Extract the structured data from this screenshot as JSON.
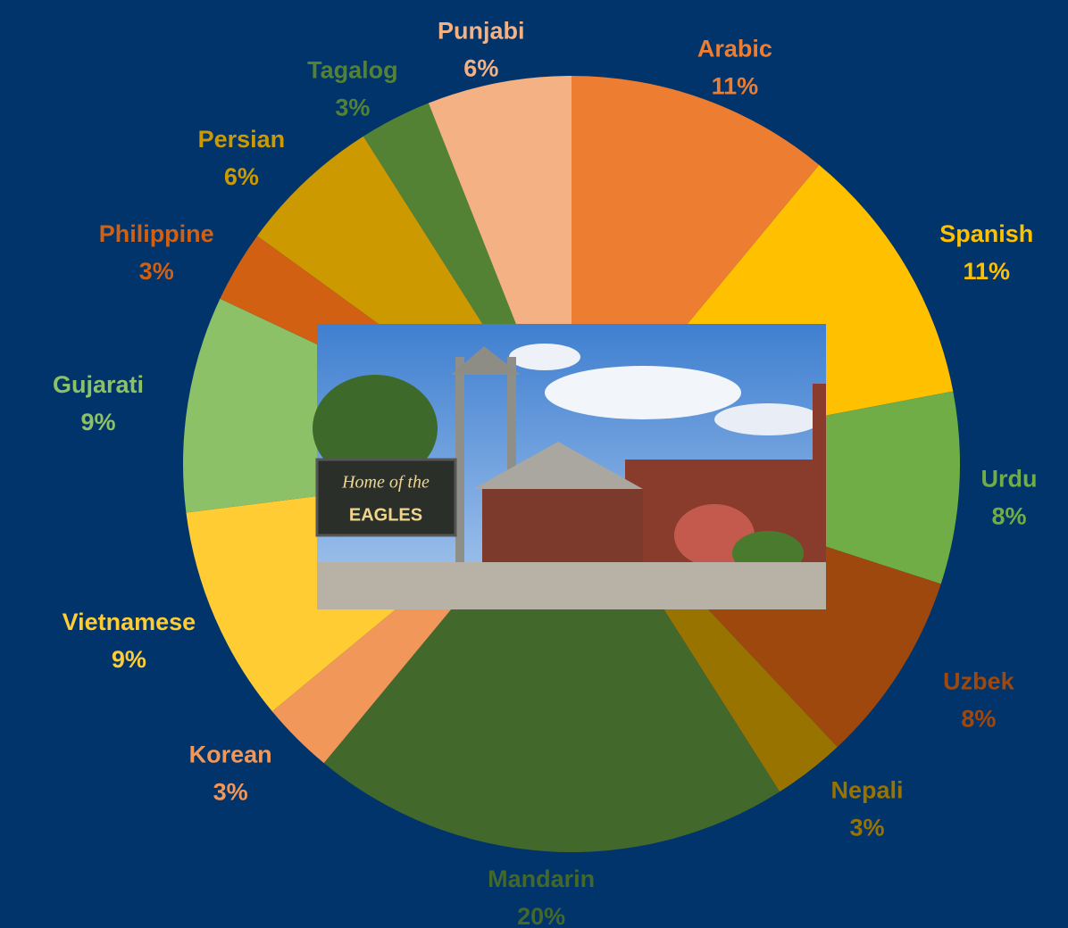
{
  "chart_data": {
    "type": "pie",
    "categories": [
      "Arabic",
      "Spanish",
      "Urdu",
      "Uzbek",
      "Nepali",
      "Mandarin",
      "Korean",
      "Vietnamese",
      "Gujarati",
      "Philippine",
      "Persian",
      "Tagalog",
      "Punjabi"
    ],
    "values": [
      11,
      11,
      8,
      8,
      3,
      20,
      3,
      9,
      9,
      3,
      6,
      3,
      6
    ],
    "value_labels": [
      "11%",
      "11%",
      "8%",
      "8%",
      "3%",
      "20%",
      "3%",
      "9%",
      "9%",
      "3%",
      "6%",
      "3%",
      "6%"
    ],
    "colors": [
      "#ed7d31",
      "#ffc000",
      "#70ad47",
      "#9e480e",
      "#997300",
      "#43682b",
      "#f1975a",
      "#ffcd33",
      "#8cc168",
      "#d26012",
      "#cc9a00",
      "#548235",
      "#f4b183"
    ]
  },
  "photo": {
    "sign": [
      "Home of the",
      "EAGLES"
    ]
  }
}
